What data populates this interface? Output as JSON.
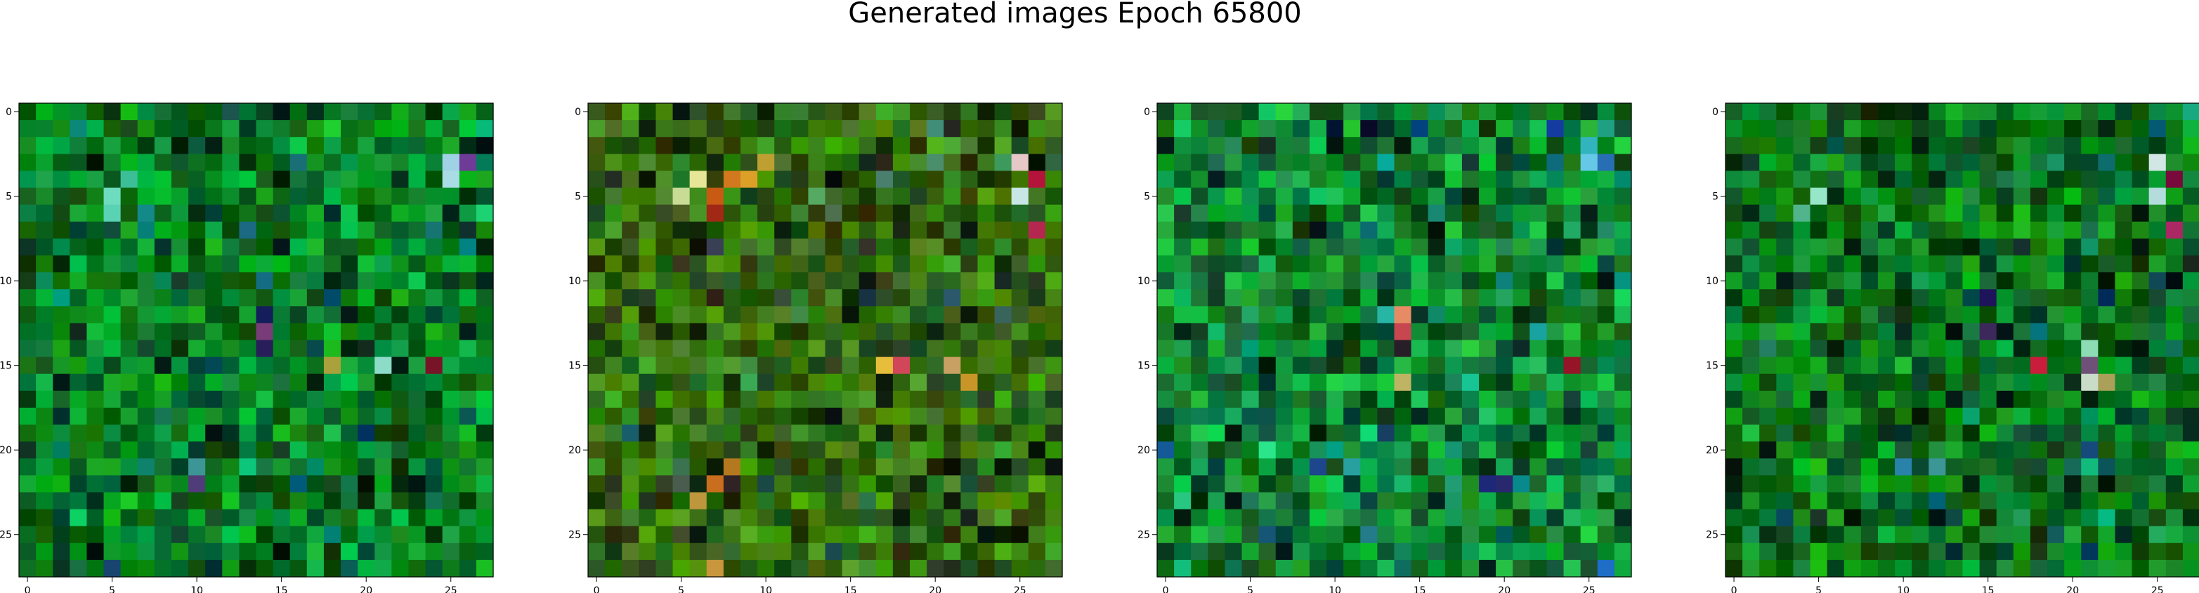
{
  "chart_data": [
    {
      "type": "heatmap",
      "title": "Generated images Epoch 65800",
      "panels": [
        {
          "name": "",
          "seed": 11,
          "base_rgb": [
            10,
            140,
            40
          ],
          "highlights": [
            [
              25,
              3,
              [
                160,
                210,
                230
              ]
            ],
            [
              26,
              3,
              [
                110,
                60,
                150
              ]
            ],
            [
              25,
              4,
              [
                170,
                220,
                230
              ]
            ],
            [
              5,
              5,
              [
                110,
                220,
                190
              ]
            ],
            [
              6,
              4,
              [
                60,
                190,
                150
              ]
            ],
            [
              5,
              6,
              [
                90,
                210,
                180
              ]
            ],
            [
              14,
              12,
              [
                20,
                30,
                90
              ]
            ],
            [
              14,
              13,
              [
                120,
                60,
                120
              ]
            ],
            [
              14,
              14,
              [
                40,
                30,
                90
              ]
            ],
            [
              18,
              15,
              [
                170,
                160,
                60
              ]
            ],
            [
              21,
              15,
              [
                140,
                220,
                200
              ]
            ],
            [
              24,
              15,
              [
                120,
                20,
                40
              ]
            ],
            [
              10,
              21,
              [
                60,
                150,
                150
              ]
            ],
            [
              10,
              22,
              [
                80,
                60,
                120
              ]
            ]
          ]
        },
        {
          "name": "",
          "seed": 29,
          "base_rgb": [
            60,
            120,
            20
          ],
          "highlights": [
            [
              6,
              4,
              [
                230,
                230,
                150
              ]
            ],
            [
              5,
              5,
              [
                200,
                220,
                150
              ]
            ],
            [
              7,
              5,
              [
                200,
                90,
                20
              ]
            ],
            [
              8,
              4,
              [
                210,
                120,
                30
              ]
            ],
            [
              9,
              4,
              [
                220,
                160,
                40
              ]
            ],
            [
              10,
              3,
              [
                190,
                160,
                50
              ]
            ],
            [
              7,
              6,
              [
                160,
                40,
                20
              ]
            ],
            [
              25,
              3,
              [
                230,
                200,
                200
              ]
            ],
            [
              26,
              4,
              [
                180,
                20,
                60
              ]
            ],
            [
              25,
              5,
              [
                200,
                230,
                230
              ]
            ],
            [
              26,
              7,
              [
                180,
                40,
                80
              ]
            ],
            [
              18,
              15,
              [
                210,
                70,
                90
              ]
            ],
            [
              17,
              15,
              [
                230,
                190,
                60
              ]
            ],
            [
              21,
              15,
              [
                200,
                160,
                100
              ]
            ],
            [
              22,
              16,
              [
                200,
                150,
                40
              ]
            ],
            [
              8,
              21,
              [
                180,
                120,
                30
              ]
            ],
            [
              7,
              22,
              [
                200,
                110,
                30
              ]
            ],
            [
              6,
              23,
              [
                190,
                150,
                60
              ]
            ],
            [
              7,
              27,
              [
                200,
                150,
                60
              ]
            ]
          ]
        },
        {
          "name": "",
          "seed": 47,
          "base_rgb": [
            20,
            150,
            60
          ],
          "highlights": [
            [
              10,
              1,
              [
                0,
                20,
                50
              ]
            ],
            [
              12,
              1,
              [
                10,
                10,
                40
              ]
            ],
            [
              23,
              1,
              [
                20,
                60,
                160
              ]
            ],
            [
              25,
              2,
              [
                50,
                180,
                190
              ]
            ],
            [
              25,
              3,
              [
                100,
                200,
                230
              ]
            ],
            [
              26,
              3,
              [
                40,
                110,
                180
              ]
            ],
            [
              14,
              12,
              [
                230,
                140,
                100
              ]
            ],
            [
              14,
              13,
              [
                200,
                70,
                80
              ]
            ],
            [
              14,
              14,
              [
                40,
                30,
                40
              ]
            ],
            [
              14,
              16,
              [
                190,
                180,
                100
              ]
            ],
            [
              24,
              15,
              [
                150,
                20,
                40
              ]
            ],
            [
              11,
              21,
              [
                40,
                160,
                160
              ]
            ],
            [
              9,
              21,
              [
                30,
                70,
                140
              ]
            ],
            [
              19,
              22,
              [
                30,
                40,
                120
              ]
            ],
            [
              20,
              22,
              [
                40,
                40,
                110
              ]
            ],
            [
              26,
              27,
              [
                30,
                110,
                200
              ]
            ],
            [
              0,
              20,
              [
                20,
                90,
                150
              ]
            ]
          ]
        },
        {
          "name": "",
          "seed": 83,
          "base_rgb": [
            15,
            130,
            35
          ],
          "highlights": [
            [
              25,
              3,
              [
                210,
                230,
                230
              ]
            ],
            [
              26,
              4,
              [
                120,
                10,
                60
              ]
            ],
            [
              25,
              5,
              [
                180,
                220,
                220
              ]
            ],
            [
              26,
              7,
              [
                170,
                40,
                100
              ]
            ],
            [
              5,
              5,
              [
                150,
                230,
                200
              ]
            ],
            [
              4,
              6,
              [
                80,
                180,
                140
              ]
            ],
            [
              15,
              11,
              [
                30,
                20,
                90
              ]
            ],
            [
              15,
              13,
              [
                60,
                40,
                90
              ]
            ],
            [
              18,
              15,
              [
                200,
                30,
                60
              ]
            ],
            [
              21,
              14,
              [
                140,
                220,
                180
              ]
            ],
            [
              21,
              15,
              [
                110,
                80,
                120
              ]
            ],
            [
              21,
              16,
              [
                200,
                220,
                200
              ]
            ],
            [
              22,
              16,
              [
                170,
                160,
                90
              ]
            ],
            [
              10,
              21,
              [
                40,
                130,
                170
              ]
            ],
            [
              12,
              21,
              [
                60,
                150,
                150
              ]
            ]
          ]
        }
      ],
      "grid_size": 28,
      "xlim": [
        -0.5,
        27.5
      ],
      "ylim": [
        27.5,
        -0.5
      ],
      "xticks": [
        0,
        5,
        10,
        15,
        20,
        25
      ],
      "yticks": [
        0,
        5,
        10,
        15,
        20,
        25
      ],
      "grid": false,
      "legend": "none"
    }
  ]
}
